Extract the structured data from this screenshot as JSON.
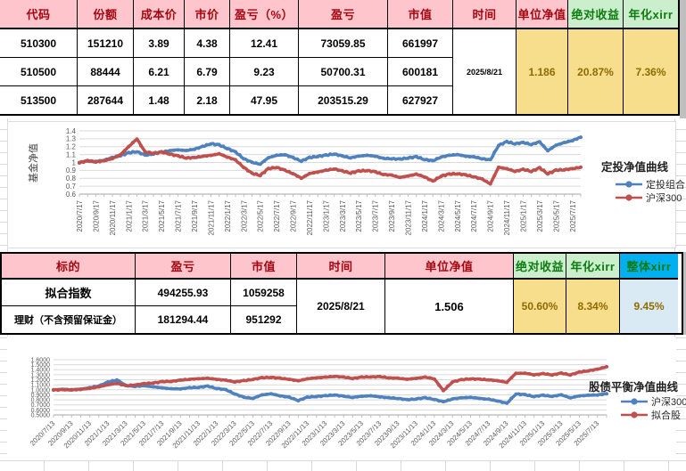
{
  "colors": {
    "header_pink_bg": "#FFC5CC",
    "header_pink_text": "#A30711",
    "header_green_bg": "#CBEECD",
    "header_green_text": "#0E7C10",
    "header_blue_bg": "#00B0F0",
    "value_yellow_bg": "#F6DE8D",
    "value_yellow_text": "#8F6B00",
    "value_lightblue_bg": "#D9EAF5",
    "series_blue": "#4F81BD",
    "series_red": "#C0504D"
  },
  "table1": {
    "headers": [
      "代码",
      "份额",
      "成本价",
      "市价",
      "盈亏（%）",
      "盈亏",
      "市值",
      "时间",
      "单位净值",
      "绝对收益",
      "年化xirr"
    ],
    "rows": [
      [
        "510300",
        "151210",
        "3.89",
        "4.38",
        "12.41",
        "73059.85",
        "661997"
      ],
      [
        "510500",
        "88444",
        "6.21",
        "6.79",
        "9.23",
        "50700.31",
        "600181"
      ],
      [
        "513500",
        "287644",
        "1.48",
        "2.18",
        "47.95",
        "203515.29",
        "627927"
      ]
    ],
    "merged": {
      "time": "2025/8/21",
      "nav": "1.186",
      "abs_return": "20.87%",
      "xirr": "7.36%"
    }
  },
  "table2": {
    "headers": [
      "标的",
      "盈亏",
      "市值",
      "时间",
      "单位净值",
      "绝对收益",
      "年化xirr",
      "整体xirr"
    ],
    "rows": [
      [
        "拟合指数",
        "494255.93",
        "1059258"
      ],
      [
        "理财（不含预留保证金）",
        "181294.44",
        "951292"
      ]
    ],
    "merged": {
      "time": "2025/8/21",
      "nav": "1.506",
      "abs_return": "50.60%",
      "xirr": "8.34%",
      "overall_xirr": "9.45%"
    }
  },
  "chart_data": [
    {
      "type": "line",
      "title": "定投净值曲线",
      "ylabel": "基金净值",
      "ylim": [
        0.6,
        1.4
      ],
      "ystep": 0.1,
      "yticks": [
        "1.4",
        "1.3",
        "1.2",
        "1.1",
        "1",
        "0.9",
        "0.8",
        "0.7",
        "0.6"
      ],
      "grid": "horizontal",
      "legend_position": "right",
      "marker": "circle",
      "x_tick_labels": [
        "2020/7/17",
        "2020/9/17",
        "2020/11/17",
        "2021/1/17",
        "2021/3/17",
        "2021/5/17",
        "2021/7/17",
        "2021/9/17",
        "2021/11/17",
        "2022/1/17",
        "2022/3/17",
        "2022/5/17",
        "2022/7/17",
        "2022/9/17",
        "2022/11/17",
        "2023/1/17",
        "2023/3/17",
        "2023/5/17",
        "2023/7/17",
        "2023/9/17",
        "2023/11/17",
        "2024/1/17",
        "2024/3/17",
        "2024/5/17",
        "2024/7/17",
        "2024/9/17",
        "2024/11/17",
        "2025/1/17",
        "2025/3/17",
        "2025/5/17",
        "2025/7/17"
      ],
      "series": [
        {
          "name": "定投组合",
          "color": "#4F81BD",
          "values": [
            1.0,
            1.02,
            1.01,
            1.03,
            1.06,
            1.09,
            1.12,
            1.14,
            1.09,
            1.11,
            1.13,
            1.15,
            1.16,
            1.15,
            1.17,
            1.2,
            1.24,
            1.22,
            1.18,
            1.13,
            1.05,
            1.0,
            0.98,
            1.06,
            1.09,
            1.1,
            1.06,
            1.02,
            1.06,
            1.08,
            1.09,
            1.11,
            1.08,
            1.06,
            1.08,
            1.09,
            1.08,
            1.05,
            1.05,
            1.04,
            1.06,
            1.07,
            1.04,
            1.02,
            1.07,
            1.09,
            1.1,
            1.08,
            1.07,
            1.05,
            1.03,
            1.22,
            1.26,
            1.24,
            1.25,
            1.23,
            1.26,
            1.15,
            1.22,
            1.25,
            1.28,
            1.32
          ]
        },
        {
          "name": "沪深300",
          "color": "#C0504D",
          "values": [
            1.0,
            1.02,
            1.01,
            1.02,
            1.05,
            1.1,
            1.2,
            1.3,
            1.13,
            1.12,
            1.13,
            1.11,
            1.08,
            1.06,
            1.06,
            1.08,
            1.09,
            1.11,
            1.07,
            1.03,
            0.94,
            0.86,
            0.84,
            0.92,
            0.94,
            0.9,
            0.86,
            0.8,
            0.86,
            0.88,
            0.9,
            0.92,
            0.89,
            0.87,
            0.89,
            0.9,
            0.88,
            0.85,
            0.84,
            0.81,
            0.83,
            0.85,
            0.82,
            0.76,
            0.83,
            0.85,
            0.86,
            0.84,
            0.82,
            0.79,
            0.73,
            0.94,
            0.92,
            0.89,
            0.91,
            0.89,
            0.93,
            0.86,
            0.9,
            0.91,
            0.92,
            0.94
          ]
        }
      ]
    },
    {
      "type": "line",
      "title": "股债平衡净值曲线",
      "ylabel": "",
      "ylim": [
        0.5,
        1.6
      ],
      "ystep": 0.1,
      "yticks": [
        "1.6000",
        "1.5000",
        "1.4000",
        "1.3000",
        "1.2000",
        "1.1000",
        "1.0000",
        "0.9000",
        "0.8000",
        "0.7000",
        "0.6000",
        "0.5000"
      ],
      "grid": "horizontal",
      "legend_position": "right",
      "marker": "circle",
      "x_tick_labels": [
        "2020/7/13",
        "2020/9/13",
        "2020/11/13",
        "2021/1/13",
        "2021/3/13",
        "2021/5/13",
        "2021/7/13",
        "2021/9/13",
        "2021/11/13",
        "2022/1/13",
        "2022/3/13",
        "2022/5/13",
        "2022/7/13",
        "2022/9/13",
        "2022/11/13",
        "2023/1/13",
        "2023/3/13",
        "2023/5/13",
        "2023/7/13",
        "2023/9/13",
        "2023/11/13",
        "2024/1/13",
        "2024/3/13",
        "2024/5/13",
        "2024/7/13",
        "2024/9/13",
        "2024/11/13",
        "2025/1/13",
        "2025/3/13",
        "2025/5/13",
        "2025/7/13"
      ],
      "series": [
        {
          "name": "沪深300",
          "color": "#4F81BD",
          "values": [
            1.0,
            1.01,
            1.0,
            1.01,
            1.04,
            1.08,
            1.15,
            1.2,
            1.08,
            1.07,
            1.08,
            1.06,
            1.04,
            1.02,
            1.02,
            1.04,
            1.05,
            1.07,
            1.03,
            1.0,
            0.92,
            0.85,
            0.83,
            0.9,
            0.92,
            0.88,
            0.85,
            0.79,
            0.85,
            0.87,
            0.88,
            0.9,
            0.87,
            0.85,
            0.87,
            0.88,
            0.86,
            0.84,
            0.83,
            0.8,
            0.82,
            0.84,
            0.81,
            0.76,
            0.82,
            0.84,
            0.85,
            0.83,
            0.81,
            0.78,
            0.73,
            0.92,
            0.9,
            0.87,
            0.89,
            0.87,
            0.9,
            0.84,
            0.88,
            0.89,
            0.9,
            0.92
          ]
        },
        {
          "name": "拟合股",
          "color": "#C0504D",
          "values": [
            1.0,
            1.0,
            1.0,
            1.01,
            1.03,
            1.06,
            1.1,
            1.13,
            1.08,
            1.1,
            1.12,
            1.14,
            1.16,
            1.17,
            1.19,
            1.21,
            1.22,
            1.23,
            1.21,
            1.19,
            1.16,
            1.18,
            1.21,
            1.24,
            1.25,
            1.23,
            1.21,
            1.18,
            1.22,
            1.24,
            1.25,
            1.27,
            1.25,
            1.23,
            1.25,
            1.26,
            1.26,
            1.24,
            1.23,
            1.21,
            1.23,
            1.25,
            1.22,
            0.98,
            1.16,
            1.2,
            1.22,
            1.21,
            1.2,
            1.18,
            1.15,
            1.33,
            1.33,
            1.3,
            1.32,
            1.3,
            1.33,
            1.3,
            1.35,
            1.38,
            1.41,
            1.46
          ]
        }
      ]
    }
  ]
}
